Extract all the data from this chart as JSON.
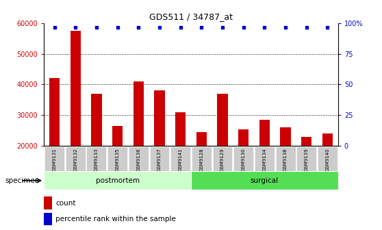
{
  "title": "GDS511 / 34787_at",
  "samples": [
    "GSM9131",
    "GSM9132",
    "GSM9133",
    "GSM9135",
    "GSM9136",
    "GSM9137",
    "GSM9141",
    "GSM9128",
    "GSM9129",
    "GSM9130",
    "GSM9134",
    "GSM9138",
    "GSM9139",
    "GSM9140"
  ],
  "counts": [
    42000,
    57500,
    37000,
    26500,
    41000,
    38000,
    31000,
    24500,
    37000,
    25500,
    28500,
    26000,
    23000,
    24000
  ],
  "groups": [
    {
      "label": "postmortem",
      "start": 0,
      "end": 7,
      "color": "#ccffcc"
    },
    {
      "label": "surgical",
      "start": 7,
      "end": 14,
      "color": "#55dd55"
    }
  ],
  "ylim_left": [
    20000,
    60000
  ],
  "ylim_right": [
    0,
    100
  ],
  "yticks_left": [
    20000,
    30000,
    40000,
    50000,
    60000
  ],
  "yticks_right": [
    0,
    25,
    50,
    75,
    100
  ],
  "bar_color": "#cc0000",
  "dot_color": "#0000cc",
  "tick_bg_color": "#cccccc",
  "legend_count_color": "#cc0000",
  "legend_dot_color": "#0000cc",
  "specimen_label": "specimen",
  "grid_yticks": [
    30000,
    40000,
    50000
  ],
  "postmortem_color": "#ccffcc",
  "surgical_color": "#55dd55"
}
